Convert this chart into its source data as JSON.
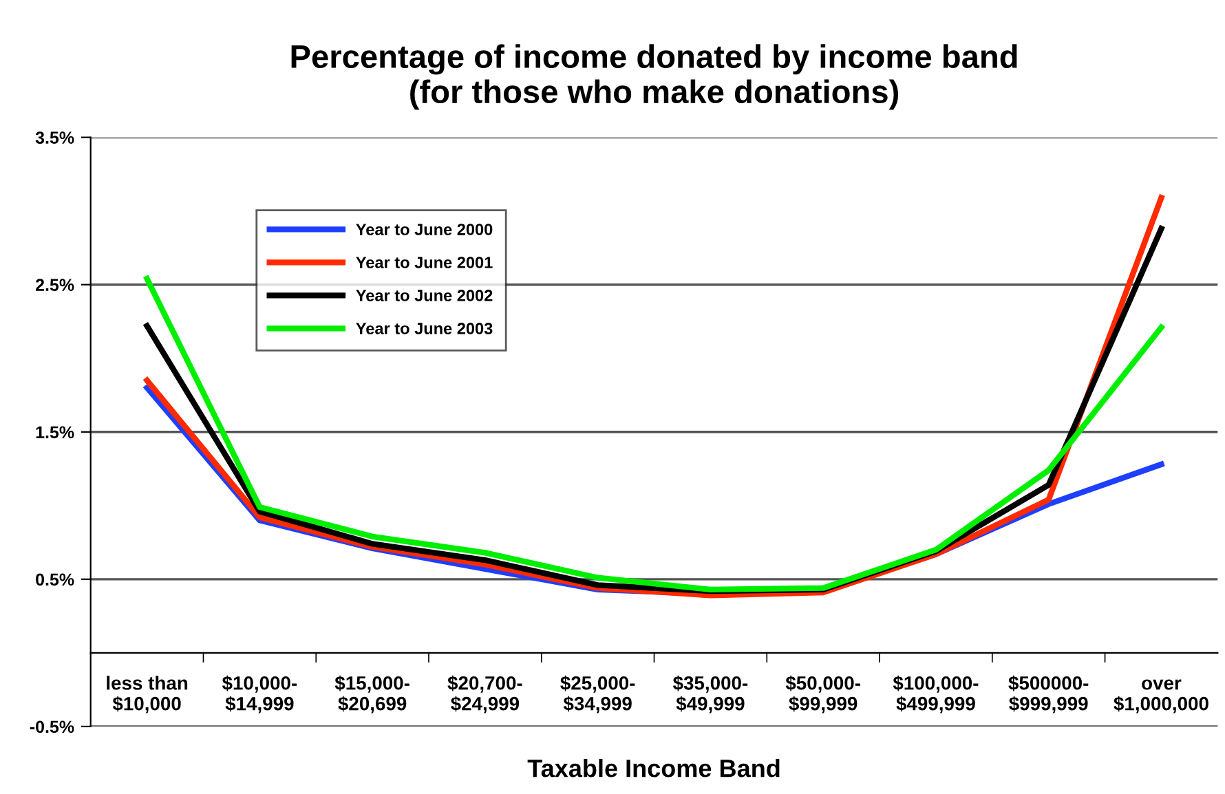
{
  "chart_data": {
    "type": "line",
    "title": "Percentage of income donated by income band\n(for those who make donations)",
    "xlabel": "Taxable Income Band",
    "categories": [
      "less than\n$10,000",
      "$10,000-\n$14,999",
      "$15,000-\n$20,699",
      "$20,700-\n$24,999",
      "$25,000-\n$34,999",
      "$35,000-\n$49,999",
      "$50,000-\n$99,999",
      "$100,000-\n$499,999",
      "$500000-\n$999,999",
      "over\n$1,000,000"
    ],
    "series": [
      {
        "name": "Year to June 2000",
        "color": "#1f3fff",
        "values": [
          1.8,
          0.9,
          0.71,
          0.57,
          0.43,
          0.4,
          0.42,
          0.67,
          1.01,
          1.28
        ]
      },
      {
        "name": "Year to June 2001",
        "color": "#ff2a00",
        "values": [
          1.85,
          0.92,
          0.72,
          0.6,
          0.44,
          0.39,
          0.41,
          0.67,
          1.04,
          3.09
        ]
      },
      {
        "name": "Year to June 2002",
        "color": "#000000",
        "values": [
          2.22,
          0.96,
          0.74,
          0.63,
          0.46,
          0.42,
          0.43,
          0.69,
          1.14,
          2.88
        ]
      },
      {
        "name": "Year to June 2003",
        "color": "#00ee00",
        "values": [
          2.54,
          0.99,
          0.79,
          0.68,
          0.51,
          0.43,
          0.44,
          0.7,
          1.24,
          2.21
        ]
      }
    ],
    "ylim": [
      -0.5,
      3.5
    ],
    "yticks": [
      {
        "value": -0.5,
        "label": "-0.5%"
      },
      {
        "value": 0.5,
        "label": "0.5%"
      },
      {
        "value": 1.5,
        "label": "1.5%"
      },
      {
        "value": 2.5,
        "label": "2.5%"
      },
      {
        "value": 3.5,
        "label": "3.5%"
      }
    ],
    "grid": "y",
    "legend": "top left",
    "marker": "none",
    "line_style": "solid"
  }
}
